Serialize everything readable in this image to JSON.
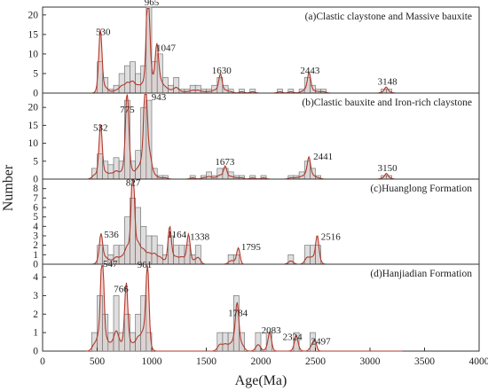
{
  "chart_data": {
    "type": "bar",
    "xlabel": "Age(Ma)",
    "ylabel": "Number",
    "xlim": [
      0,
      4000
    ],
    "x_ticks": [
      0,
      500,
      1000,
      1500,
      2000,
      2500,
      3000,
      3500,
      4000
    ],
    "bin_width": 50,
    "colors": {
      "bar_fill": "#d3d3d3",
      "bar_stroke": "#666666",
      "curve": "#b03a2e",
      "curve_fill": "#efc3bd"
    },
    "panels": [
      {
        "title": "(a)Clastic claystone and Massive bauxite",
        "ylim": [
          0,
          22
        ],
        "y_ticks": [
          0,
          5,
          10,
          15,
          20
        ],
        "bars": [
          [
            525,
            8
          ],
          [
            575,
            4
          ],
          [
            625,
            1
          ],
          [
            675,
            2
          ],
          [
            725,
            5
          ],
          [
            775,
            7
          ],
          [
            825,
            8
          ],
          [
            875,
            5
          ],
          [
            925,
            7
          ],
          [
            975,
            22
          ],
          [
            1025,
            8
          ],
          [
            1075,
            10
          ],
          [
            1125,
            4
          ],
          [
            1175,
            2
          ],
          [
            1225,
            4
          ],
          [
            1275,
            1
          ],
          [
            1325,
            1
          ],
          [
            1375,
            2
          ],
          [
            1425,
            2
          ],
          [
            1475,
            1
          ],
          [
            1525,
            1
          ],
          [
            1575,
            2
          ],
          [
            1625,
            4
          ],
          [
            1675,
            2
          ],
          [
            1725,
            1
          ],
          [
            1825,
            1
          ],
          [
            1925,
            1
          ],
          [
            2175,
            1
          ],
          [
            2275,
            1
          ],
          [
            2375,
            1
          ],
          [
            2425,
            4
          ],
          [
            2475,
            2
          ],
          [
            2525,
            1
          ],
          [
            2575,
            1
          ],
          [
            3125,
            1
          ],
          [
            3175,
            1
          ]
        ],
        "peaks": [
          {
            "x": 530,
            "y": 13.5,
            "label": "530"
          },
          {
            "x": 965,
            "y": 21.5,
            "label": "965"
          },
          {
            "x": 1047,
            "y": 9.5,
            "label": "1047"
          },
          {
            "x": 1630,
            "y": 3.5,
            "label": "1630"
          },
          {
            "x": 2443,
            "y": 4,
            "label": "2443"
          },
          {
            "x": 3148,
            "y": 1.2,
            "label": "3148"
          }
        ],
        "annotations": [
          {
            "text": "530",
            "x": 555,
            "y": 14.8
          },
          {
            "text": "965",
            "x": 1000,
            "y": 22.5
          },
          {
            "text": "1047",
            "x": 1130,
            "y": 10.8
          },
          {
            "text": "1630",
            "x": 1640,
            "y": 5
          },
          {
            "text": "2443",
            "x": 2450,
            "y": 5
          },
          {
            "text": "3148",
            "x": 3160,
            "y": 2.2
          }
        ]
      },
      {
        "title": "(b)Clastic bauxite and Iron-rich claystone",
        "ylim": [
          0,
          24
        ],
        "y_ticks": [
          0,
          5,
          10,
          15,
          20
        ],
        "bars": [
          [
            475,
            3
          ],
          [
            525,
            7
          ],
          [
            575,
            5
          ],
          [
            625,
            4
          ],
          [
            675,
            6
          ],
          [
            725,
            5
          ],
          [
            775,
            22
          ],
          [
            825,
            5
          ],
          [
            875,
            8
          ],
          [
            925,
            20
          ],
          [
            975,
            22
          ],
          [
            1025,
            3
          ],
          [
            1075,
            1
          ],
          [
            1125,
            1
          ],
          [
            1375,
            1
          ],
          [
            1475,
            1
          ],
          [
            1525,
            2
          ],
          [
            1575,
            1
          ],
          [
            1625,
            3
          ],
          [
            1675,
            3
          ],
          [
            1725,
            2
          ],
          [
            1775,
            1
          ],
          [
            1825,
            1
          ],
          [
            1925,
            1
          ],
          [
            2025,
            1
          ],
          [
            2275,
            1
          ],
          [
            2325,
            1
          ],
          [
            2375,
            2
          ],
          [
            2425,
            5
          ],
          [
            2475,
            3
          ],
          [
            2525,
            1
          ],
          [
            3125,
            1
          ],
          [
            3175,
            1
          ]
        ],
        "peaks": [
          {
            "x": 532,
            "y": 13,
            "label": "532"
          },
          {
            "x": 775,
            "y": 17,
            "label": "775"
          },
          {
            "x": 943,
            "y": 21,
            "label": "943"
          },
          {
            "x": 1673,
            "y": 2.5,
            "label": "1673"
          },
          {
            "x": 2441,
            "y": 4.5,
            "label": "2441"
          },
          {
            "x": 3150,
            "y": 1.2,
            "label": "3150"
          }
        ],
        "annotations": [
          {
            "text": "532",
            "x": 530,
            "y": 13.5
          },
          {
            "text": "775",
            "x": 775,
            "y": 18.5
          },
          {
            "text": "943",
            "x": 1065,
            "y": 22
          },
          {
            "text": "1673",
            "x": 1670,
            "y": 4
          },
          {
            "text": "2441",
            "x": 2570,
            "y": 5.5
          },
          {
            "text": "3150",
            "x": 3160,
            "y": 2.2
          }
        ]
      },
      {
        "title": "(c)Huanglong Formation",
        "ylim": [
          0,
          9
        ],
        "y_ticks": [
          0,
          1,
          2,
          3,
          4,
          5,
          6,
          7,
          8
        ],
        "bars": [
          [
            525,
            2
          ],
          [
            575,
            2
          ],
          [
            625,
            1
          ],
          [
            675,
            2
          ],
          [
            725,
            2
          ],
          [
            775,
            5
          ],
          [
            825,
            7
          ],
          [
            875,
            6
          ],
          [
            925,
            4
          ],
          [
            975,
            3
          ],
          [
            1025,
            3
          ],
          [
            1075,
            2
          ],
          [
            1125,
            1
          ],
          [
            1175,
            3
          ],
          [
            1225,
            2
          ],
          [
            1275,
            2
          ],
          [
            1325,
            2
          ],
          [
            1375,
            1
          ],
          [
            1425,
            2
          ],
          [
            1725,
            1
          ],
          [
            1775,
            1
          ],
          [
            2275,
            1
          ],
          [
            2425,
            2
          ],
          [
            2475,
            2
          ],
          [
            2525,
            2
          ]
        ],
        "peaks": [
          {
            "x": 536,
            "y": 2.5,
            "label": "536"
          },
          {
            "x": 827,
            "y": 7.8,
            "label": "827"
          },
          {
            "x": 1164,
            "y": 3,
            "label": "1164"
          },
          {
            "x": 1338,
            "y": 2.5,
            "label": "1338"
          },
          {
            "x": 1795,
            "y": 1.5,
            "label": "1795"
          },
          {
            "x": 2516,
            "y": 2.3,
            "label": "2516"
          }
        ],
        "annotations": [
          {
            "text": "536",
            "x": 630,
            "y": 2.8
          },
          {
            "text": "827",
            "x": 830,
            "y": 8.3
          },
          {
            "text": "1164",
            "x": 1230,
            "y": 2.8
          },
          {
            "text": "1338",
            "x": 1440,
            "y": 2.6
          },
          {
            "text": "1795",
            "x": 1910,
            "y": 1.5
          },
          {
            "text": "2516",
            "x": 2640,
            "y": 2.6
          }
        ]
      },
      {
        "title": "(d)Hanjiadian Formation",
        "ylim": [
          0,
          4.7
        ],
        "y_ticks": [
          0,
          1,
          2,
          3,
          4
        ],
        "bars": [
          [
            475,
            1
          ],
          [
            525,
            3
          ],
          [
            575,
            2
          ],
          [
            625,
            1
          ],
          [
            675,
            3
          ],
          [
            725,
            1
          ],
          [
            775,
            2
          ],
          [
            825,
            1
          ],
          [
            875,
            2
          ],
          [
            925,
            3
          ],
          [
            975,
            1
          ],
          [
            1625,
            1
          ],
          [
            1675,
            1
          ],
          [
            1725,
            1
          ],
          [
            1775,
            3
          ],
          [
            1825,
            1
          ],
          [
            1975,
            1
          ],
          [
            2075,
            1
          ],
          [
            2325,
            1
          ],
          [
            2475,
            1
          ]
        ],
        "peaks": [
          {
            "x": 547,
            "y": 4.5,
            "label": "547"
          },
          {
            "x": 766,
            "y": 3,
            "label": "766"
          },
          {
            "x": 961,
            "y": 4.2,
            "label": "961"
          },
          {
            "x": 1784,
            "y": 1.6,
            "label": "1784"
          },
          {
            "x": 2083,
            "y": 0.7,
            "label": "2083"
          },
          {
            "x": 2324,
            "y": 0.5,
            "label": "2324"
          },
          {
            "x": 2497,
            "y": 0.4,
            "label": "2497"
          }
        ],
        "annotations": [
          {
            "text": "547",
            "x": 620,
            "y": 4.55
          },
          {
            "text": "766",
            "x": 720,
            "y": 3.2
          },
          {
            "text": "961",
            "x": 935,
            "y": 4.5
          },
          {
            "text": "1784",
            "x": 1790,
            "y": 1.9
          },
          {
            "text": "2083",
            "x": 2095,
            "y": 0.95
          },
          {
            "text": "2324",
            "x": 2290,
            "y": 0.6
          },
          {
            "text": "2497",
            "x": 2550,
            "y": 0.35
          }
        ]
      }
    ]
  }
}
